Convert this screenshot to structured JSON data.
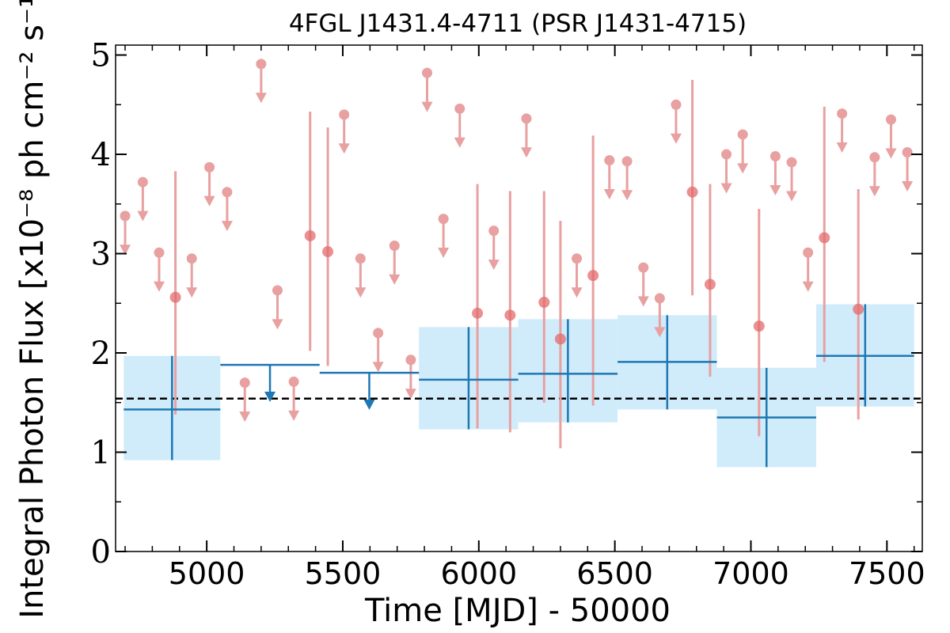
{
  "chart_data": {
    "type": "scatter",
    "title": "4FGL J1431.4-4711 (PSR J1431-4715)",
    "xlabel": "Time [MJD] - 50000",
    "ylabel": "Integral Photon Flux [x10⁻⁸ ph cm⁻² s⁻¹]",
    "xlim": [
      4665,
      7630
    ],
    "ylim": [
      0,
      5.1
    ],
    "xticks": [
      "5000",
      "5500",
      "6000",
      "6500",
      "7000",
      "7500"
    ],
    "yticks": [
      "0",
      "1",
      "2",
      "3",
      "4",
      "5"
    ],
    "mean_flux": 1.54,
    "colors": {
      "short_bins": "#e8a0a0",
      "long_bins": "#1f77b4",
      "long_band": "#d0ecfb",
      "mean_line": "#000000"
    },
    "short_bins": {
      "upper_limits": [
        {
          "x": 4700,
          "y": 3.38
        },
        {
          "x": 4765,
          "y": 3.72
        },
        {
          "x": 4825,
          "y": 3.01
        },
        {
          "x": 4945,
          "y": 2.95
        },
        {
          "x": 5010,
          "y": 3.87
        },
        {
          "x": 5075,
          "y": 3.62
        },
        {
          "x": 5140,
          "y": 1.7
        },
        {
          "x": 5200,
          "y": 4.91
        },
        {
          "x": 5260,
          "y": 2.63
        },
        {
          "x": 5320,
          "y": 1.71
        },
        {
          "x": 5505,
          "y": 4.4
        },
        {
          "x": 5565,
          "y": 2.95
        },
        {
          "x": 5630,
          "y": 2.2
        },
        {
          "x": 5690,
          "y": 3.08
        },
        {
          "x": 5750,
          "y": 1.93
        },
        {
          "x": 5810,
          "y": 4.82
        },
        {
          "x": 5870,
          "y": 3.35
        },
        {
          "x": 5930,
          "y": 4.46
        },
        {
          "x": 6055,
          "y": 3.23
        },
        {
          "x": 6175,
          "y": 4.36
        },
        {
          "x": 6360,
          "y": 2.95
        },
        {
          "x": 6480,
          "y": 3.94
        },
        {
          "x": 6545,
          "y": 3.93
        },
        {
          "x": 6605,
          "y": 2.86
        },
        {
          "x": 6665,
          "y": 2.55
        },
        {
          "x": 6725,
          "y": 4.5
        },
        {
          "x": 6910,
          "y": 4.0
        },
        {
          "x": 6970,
          "y": 4.2
        },
        {
          "x": 7090,
          "y": 3.98
        },
        {
          "x": 7150,
          "y": 3.92
        },
        {
          "x": 7210,
          "y": 3.01
        },
        {
          "x": 7335,
          "y": 4.41
        },
        {
          "x": 7455,
          "y": 3.97
        },
        {
          "x": 7515,
          "y": 4.35
        },
        {
          "x": 7575,
          "y": 4.02
        }
      ],
      "detections": [
        {
          "x": 4885,
          "y": 2.56,
          "ylo": 1.38,
          "yhi": 3.83
        },
        {
          "x": 5380,
          "y": 3.18,
          "ylo": 2.02,
          "yhi": 4.43
        },
        {
          "x": 5445,
          "y": 3.02,
          "ylo": 1.87,
          "yhi": 4.27
        },
        {
          "x": 5995,
          "y": 2.4,
          "ylo": 1.24,
          "yhi": 3.7
        },
        {
          "x": 6115,
          "y": 2.38,
          "ylo": 1.2,
          "yhi": 3.63
        },
        {
          "x": 6240,
          "y": 2.51,
          "ylo": 1.5,
          "yhi": 3.63
        },
        {
          "x": 6300,
          "y": 2.14,
          "ylo": 1.04,
          "yhi": 3.33
        },
        {
          "x": 6420,
          "y": 2.78,
          "ylo": 1.47,
          "yhi": 4.19
        },
        {
          "x": 6785,
          "y": 3.62,
          "ylo": 2.58,
          "yhi": 4.75
        },
        {
          "x": 6850,
          "y": 2.69,
          "ylo": 1.76,
          "yhi": 3.7
        },
        {
          "x": 7030,
          "y": 2.27,
          "ylo": 1.16,
          "yhi": 3.45
        },
        {
          "x": 7270,
          "y": 3.16,
          "ylo": 1.91,
          "yhi": 4.48
        },
        {
          "x": 7395,
          "y": 2.44,
          "ylo": 1.33,
          "yhi": 3.65
        }
      ]
    },
    "long_bins": {
      "detections": [
        {
          "x0": 4695,
          "x1": 5050,
          "y": 1.43,
          "ylo": 0.92,
          "yhi": 1.97
        },
        {
          "x0": 5780,
          "x1": 6145,
          "y": 1.73,
          "ylo": 1.23,
          "yhi": 2.26
        },
        {
          "x0": 6145,
          "x1": 6510,
          "y": 1.79,
          "ylo": 1.3,
          "yhi": 2.34
        },
        {
          "x0": 6510,
          "x1": 6875,
          "y": 1.91,
          "ylo": 1.43,
          "yhi": 2.38
        },
        {
          "x0": 6875,
          "x1": 7240,
          "y": 1.35,
          "ylo": 0.85,
          "yhi": 1.85
        },
        {
          "x0": 7240,
          "x1": 7600,
          "y": 1.97,
          "ylo": 1.46,
          "yhi": 2.49
        }
      ],
      "upper_limits": [
        {
          "x0": 5050,
          "x1": 5415,
          "y": 1.88
        },
        {
          "x0": 5415,
          "x1": 5780,
          "y": 1.8
        }
      ]
    }
  }
}
